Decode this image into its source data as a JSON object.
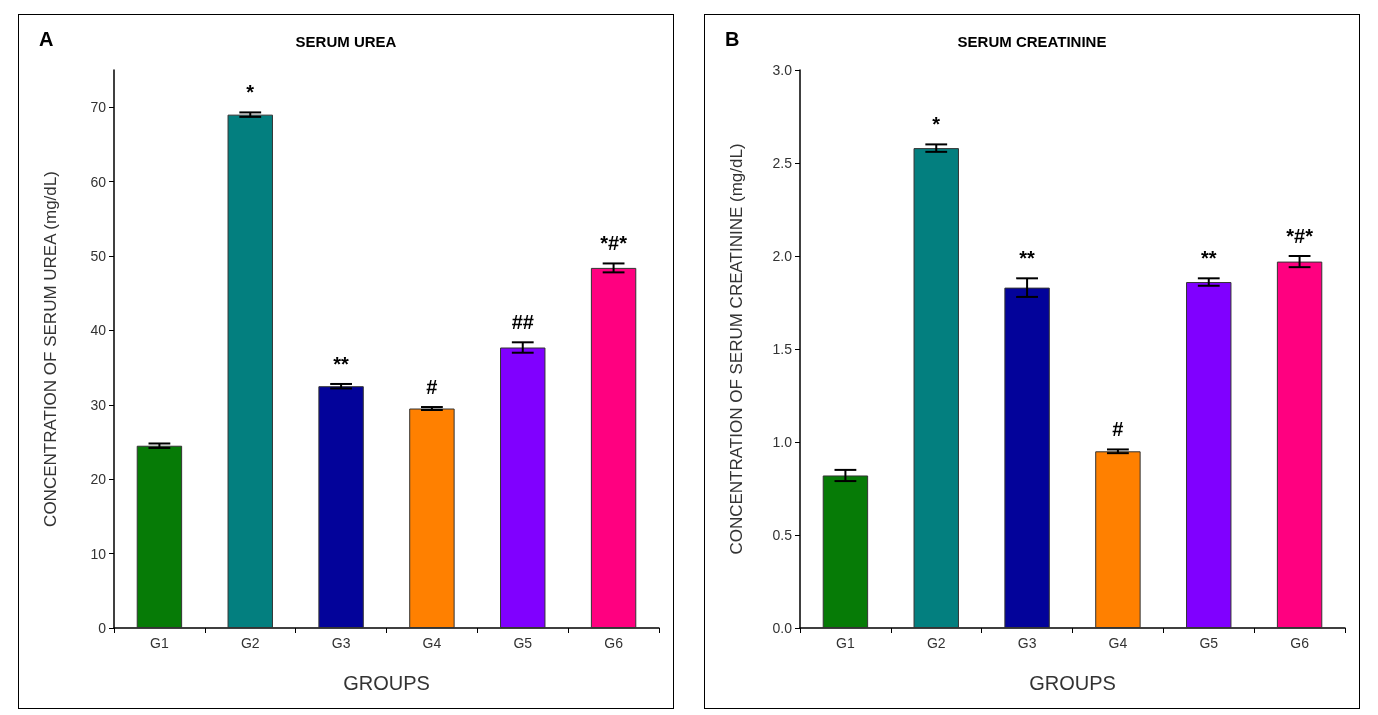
{
  "chart_data": [
    {
      "type": "bar",
      "title": "SERUM UREA",
      "xlabel": "GROUPS",
      "ylabel": "CONCENTRATION OF SERUM UREA (mg/dL)",
      "annotations": [
        "A"
      ],
      "categories": [
        "G1",
        "G2",
        "G3",
        "G4",
        "G5",
        "G6"
      ],
      "values": [
        24.5,
        69,
        32.5,
        29.5,
        37.7,
        48.4
      ],
      "errors": [
        0.3,
        0.3,
        0.3,
        0.2,
        0.7,
        0.6
      ],
      "value_labels": [
        null,
        "*",
        "**",
        "#",
        "##",
        "*#*"
      ],
      "colors": [
        "#067b06",
        "#037f7f",
        "#03039a",
        "#ff8000",
        "#8000ff",
        "#ff0080"
      ],
      "ylim": [
        0,
        75
      ],
      "yticks": [
        0,
        10,
        20,
        30,
        40,
        50,
        60,
        70
      ],
      "grid": false
    },
    {
      "type": "bar",
      "title": "SERUM CREATININE",
      "xlabel": "GROUPS",
      "ylabel": "CONCENTRATION OF SERUM CREATININE (mg/dL)",
      "annotations": [
        "B"
      ],
      "categories": [
        "G1",
        "G2",
        "G3",
        "G4",
        "G5",
        "G6"
      ],
      "values": [
        0.82,
        2.58,
        1.83,
        0.95,
        1.86,
        1.97
      ],
      "errors": [
        0.03,
        0.02,
        0.05,
        0.01,
        0.02,
        0.03
      ],
      "value_labels": [
        null,
        "*",
        "**",
        "#",
        "**",
        "*#*"
      ],
      "colors": [
        "#067b06",
        "#037f7f",
        "#03039a",
        "#ff8000",
        "#8000ff",
        "#ff0080"
      ],
      "ylim": [
        0,
        3
      ],
      "yticks": [
        {
          "value": 0,
          "label": "0.0"
        },
        0.5,
        {
          "value": 1,
          "label": "1.0"
        },
        1.5,
        {
          "value": 2,
          "label": "2.0"
        },
        2.5,
        {
          "value": 3,
          "label": "3.0"
        }
      ],
      "grid": false
    }
  ]
}
